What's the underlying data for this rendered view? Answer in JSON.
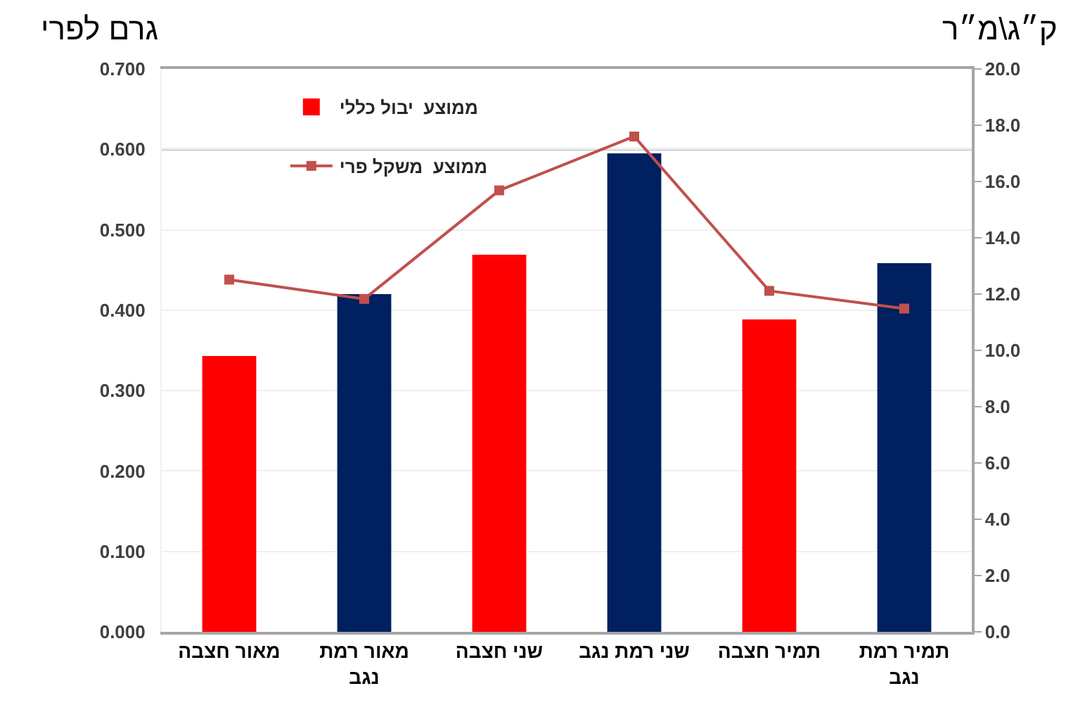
{
  "chart_data": {
    "type": "bar",
    "categories": [
      "מאור חצבה",
      "מאור רמת נגב",
      "שני חצבה",
      "שני רמת נגב",
      "תמיר חצבה",
      "תמיר רמת נגב"
    ],
    "series": [
      {
        "name": "ממוצע  יבול כללי",
        "axis": "y2",
        "color": "#ff0000",
        "colors": [
          "#ff0000",
          "#002060",
          "#ff0000",
          "#002060",
          "#ff0000",
          "#002060"
        ],
        "values": [
          9.8,
          12.0,
          13.4,
          17.0,
          11.1,
          13.1
        ]
      },
      {
        "name": "ממוצע  משקל פרי",
        "type": "line",
        "axis": "y",
        "color": "#c0504d",
        "values": [
          0.438,
          0.414,
          0.549,
          0.616,
          0.424,
          0.402
        ]
      }
    ],
    "ylabel": "גרם לפרי",
    "y2label": "ק״ג\\מ״ר",
    "ylim": [
      0,
      0.7
    ],
    "yticks": [
      {
        "value": 0,
        "label": "0.000"
      },
      {
        "value": 0.1,
        "label": "0.100"
      },
      {
        "value": 0.2,
        "label": "0.200"
      },
      {
        "value": 0.3,
        "label": "0.300"
      },
      {
        "value": 0.4,
        "label": "0.400"
      },
      {
        "value": 0.5,
        "label": "0.500"
      },
      {
        "value": 0.6,
        "label": "0.600"
      },
      {
        "value": 0.7,
        "label": "0.700"
      }
    ],
    "y2lim": [
      0,
      20
    ],
    "y2ticks": [
      {
        "value": 0,
        "label": "0.0"
      },
      {
        "value": 2,
        "label": "2.0"
      },
      {
        "value": 4,
        "label": "4.0"
      },
      {
        "value": 6,
        "label": "6.0"
      },
      {
        "value": 8,
        "label": "8.0"
      },
      {
        "value": 10,
        "label": "10.0"
      },
      {
        "value": 12,
        "label": "12.0"
      },
      {
        "value": 14,
        "label": "14.0"
      },
      {
        "value": 16,
        "label": "16.0"
      },
      {
        "value": 18,
        "label": "18.0"
      },
      {
        "value": 20,
        "label": "20.0"
      }
    ],
    "ref_lines": [
      {
        "axis": "y",
        "value": 0.6,
        "color": "#a6a6a6"
      }
    ],
    "grid": "y",
    "legend": "top left",
    "marker": "square",
    "line_style": "solid"
  }
}
